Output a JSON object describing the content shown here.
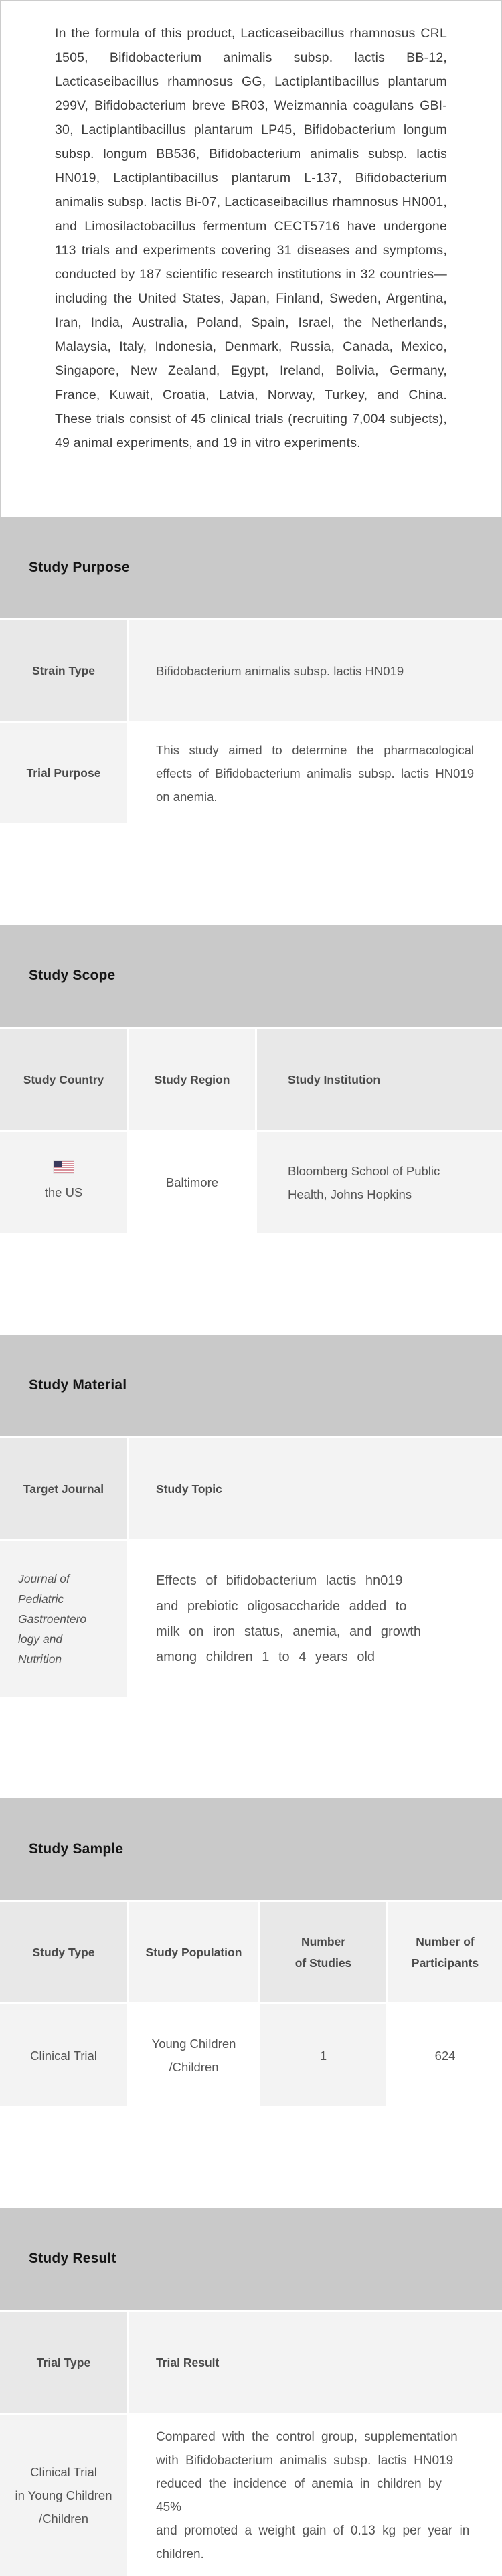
{
  "intro": {
    "text": "In the formula of this product, Lacticaseibacillus rhamnosus CRL 1505, Bifidobacterium animalis subsp. lactis BB-12, Lacticaseibacillus rhamnosus GG, Lactiplantibacillus plantarum 299V, Bifidobacterium breve BR03, Weizmannia coagulans GBI-30, Lactiplantibacillus plantarum LP45, Bifidobacterium longum subsp. longum BB536, Bifidobacterium animalis subsp. lactis HN019, Lactiplantibacillus plantarum L-137, Bifidobacterium animalis subsp. lactis Bi-07, Lacticaseibacillus rhamnosus HN001, and Limosilactobacillus fermentum CECT5716 have undergone 113 trials and experiments covering 31 diseases and symptoms, conducted by 187 scientific research institutions in 32 countries—including the United States, Japan, Finland, Sweden, Argentina, Iran, India, Australia, Poland, Spain, Israel, the Netherlands, Malaysia, Italy, Indonesia, Denmark, Russia, Canada, Mexico, Singapore, New Zealand, Egypt, Ireland, Bolivia, Germany, France, Kuwait, Croatia, Latvia, Norway, Turkey, and China. These trials consist of 45 clinical trials (recruiting 7,004 subjects), 49 animal experiments, and 19 in vitro experiments."
  },
  "purpose": {
    "title": "Study Purpose",
    "strain_label": "Strain Type",
    "strain_value": "Bifidobacterium animalis subsp. lactis HN019",
    "trial_label": "Trial Purpose",
    "trial_value": "This study aimed to determine the pharmacological effects of Bifidobacterium animalis subsp. lactis HN019 on anemia."
  },
  "scope": {
    "title": "Study Scope",
    "headers": [
      "Study Country",
      "Study Region",
      "Study Institution"
    ],
    "country": "the US",
    "country_flag": "us-flag",
    "region": "Baltimore",
    "institution": "Bloomberg School of Public\nHealth, Johns Hopkins"
  },
  "material": {
    "title": "Study Material",
    "headers": [
      "Target Journal",
      "Study Topic"
    ],
    "journal": "Journal of\nPediatric\nGastroentero\nlogy and\nNutrition",
    "topic": "Effects of bifidobacterium lactis hn019\nand prebiotic oligosaccharide added to\nmilk on iron status, anemia, and growth\namong children 1 to 4 years old"
  },
  "sample": {
    "title": "Study Sample",
    "headers": [
      "Study Type",
      "Study Population",
      "Number\nof Studies",
      "Number of\nParticipants"
    ],
    "study_type": "Clinical Trial",
    "population": "Young Children\n/Children",
    "num_studies": "1",
    "num_participants": "624"
  },
  "result": {
    "title": "Study Result",
    "headers": [
      "Trial Type",
      "Trial Result"
    ],
    "trial_type": "Clinical Trial\nin Young Children\n/Children",
    "trial_result": "Compared with the control group, supplementation\nwith Bifidobacterium animalis subsp. lactis HN019\nreduced the incidence of anemia in children by 45%\nand promoted a weight gain of 0.13 kg per year in\nchildren."
  }
}
